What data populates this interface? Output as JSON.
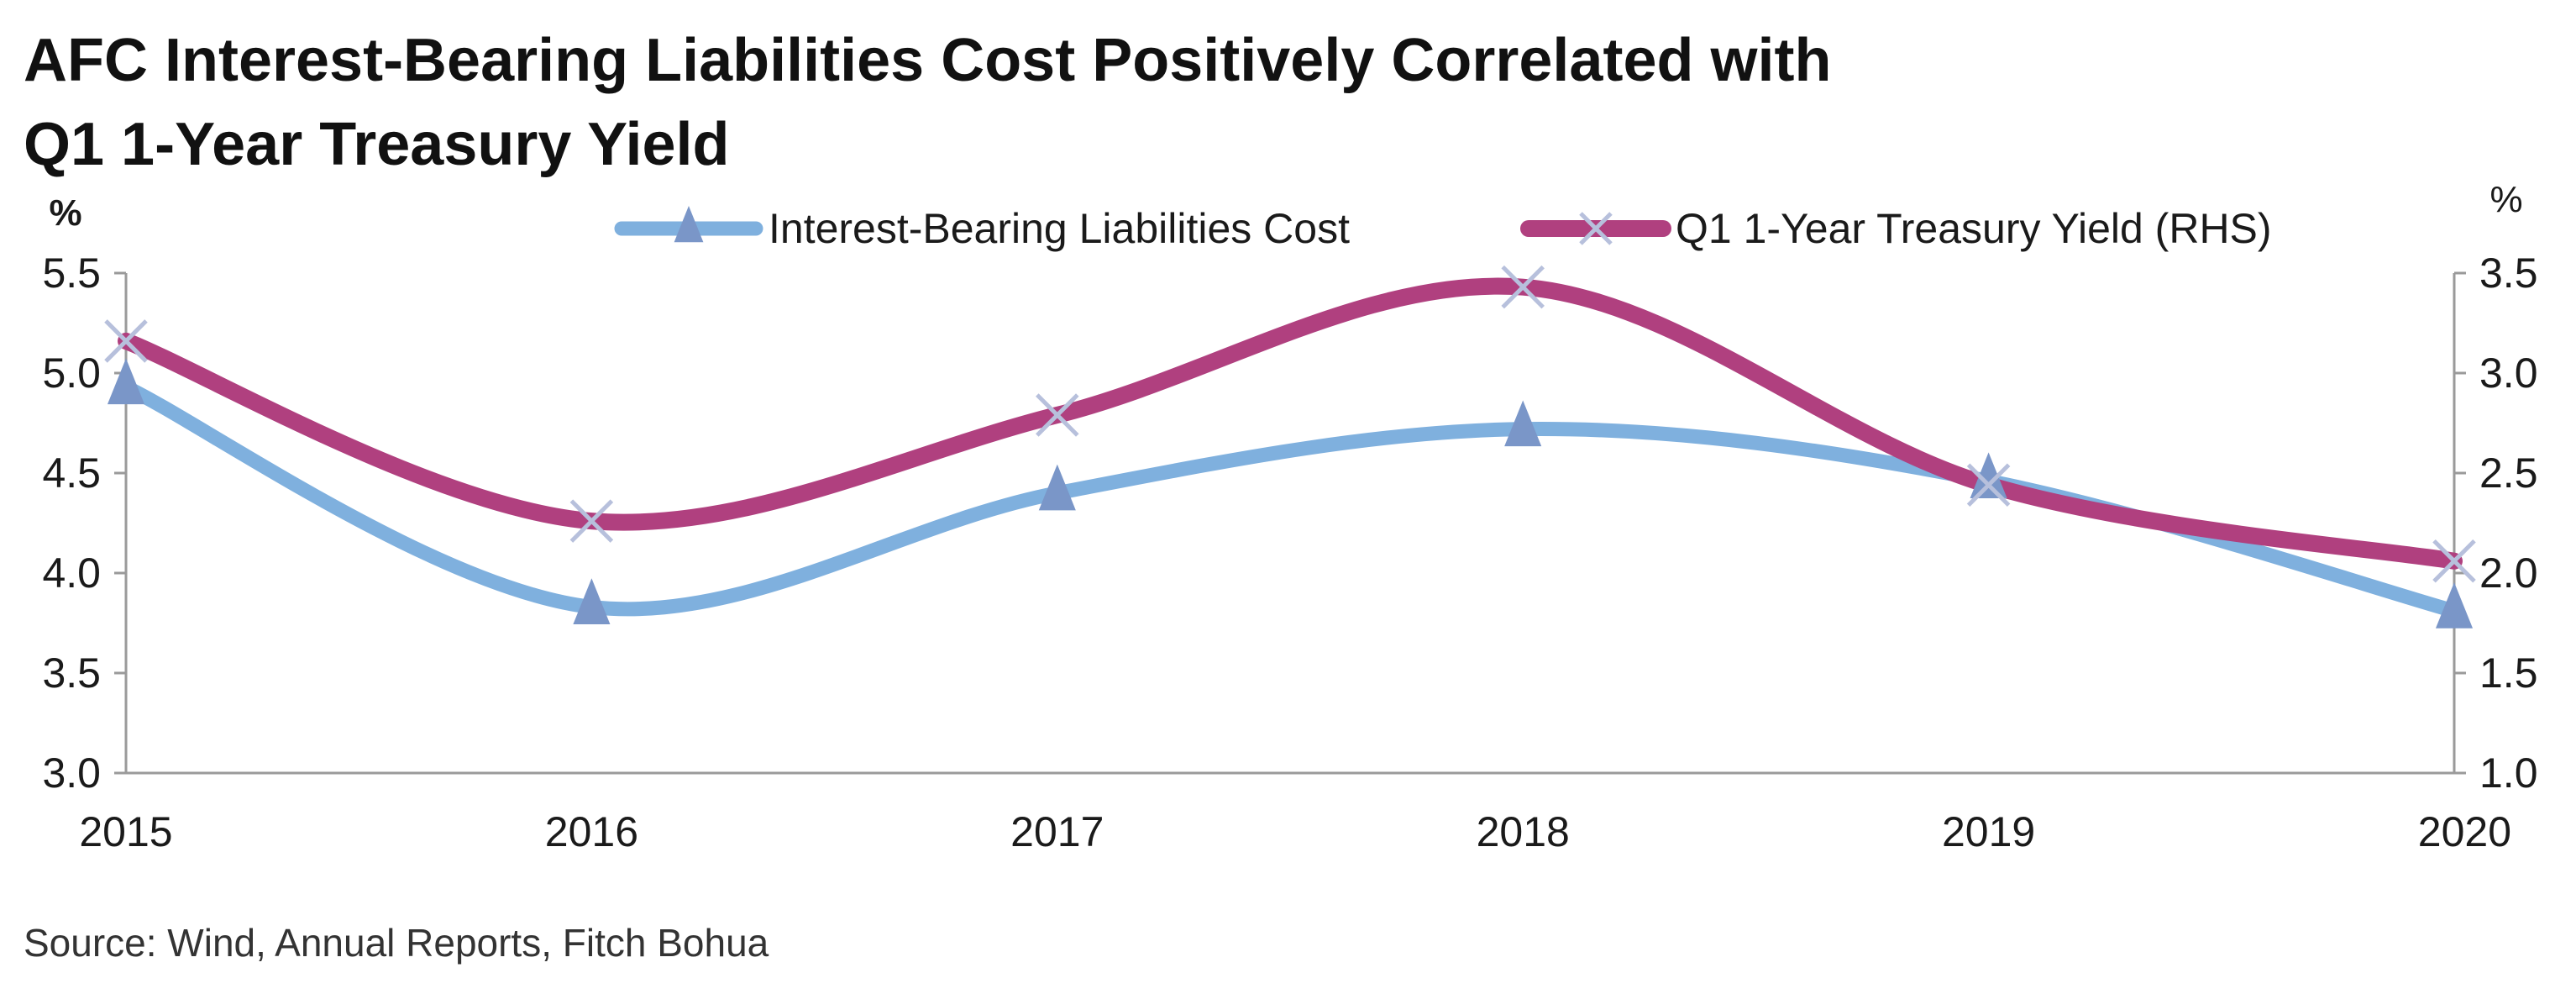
{
  "title_line1": "AFC Interest-Bearing Liabilities Cost Positively Correlated with",
  "title_line2": "Q1 1-Year Treasury Yield",
  "source": "Source: Wind, Annual Reports, Fitch Bohua",
  "chart_data": {
    "type": "line",
    "x": [
      "2015",
      "2016",
      "2017",
      "2018",
      "2019",
      "2020"
    ],
    "left_axis": {
      "unit": "%",
      "range": [
        3.0,
        5.5
      ],
      "ticks": [
        "3.0",
        "3.5",
        "4.0",
        "4.5",
        "5.0",
        "5.5"
      ]
    },
    "right_axis": {
      "unit": "%",
      "range": [
        1.0,
        3.5
      ],
      "ticks": [
        "1.0",
        "1.5",
        "2.0",
        "2.5",
        "3.0",
        "3.5"
      ]
    },
    "series": [
      {
        "name": "Interest-Bearing Liabilities Cost",
        "axis": "left",
        "color": "#7fb0de",
        "marker": "triangle",
        "marker_color": "#7a96c8",
        "values": [
          4.93,
          3.83,
          4.4,
          4.72,
          4.46,
          3.81
        ]
      },
      {
        "name": "Q1 1-Year Treasury Yield (RHS)",
        "axis": "right",
        "color": "#b0407f",
        "marker": "x",
        "marker_color": "#b7c0dc",
        "values": [
          3.16,
          2.26,
          2.79,
          3.43,
          2.44,
          2.06
        ]
      }
    ],
    "legend": "top-center",
    "grid": false
  }
}
